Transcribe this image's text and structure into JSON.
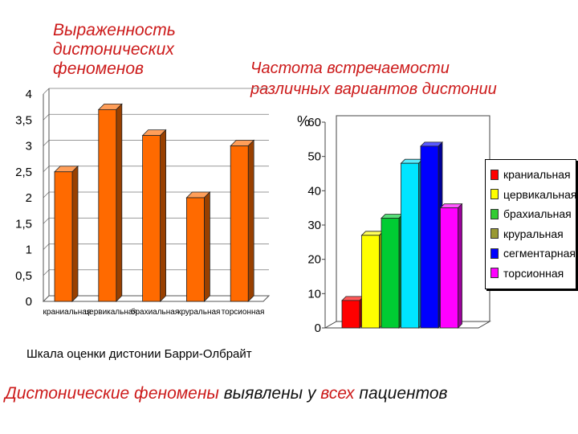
{
  "title_left": {
    "line1": "Выраженность",
    "line2": "дистонических",
    "line3": "феноменов"
  },
  "title_right": {
    "line1": "Частота встречаемости",
    "line2": "различных вариантов дистонии"
  },
  "caption": "Шкала оценки дистонии Барри-Олбрайт",
  "bottom_text": {
    "part1": "Дистонические феномены",
    "part2": "выявлены у",
    "part3": "всех",
    "part4": "пациентов"
  },
  "chart_data": [
    {
      "type": "bar",
      "title": "Выраженность дистонических феноменов",
      "xlabel": "Шкала оценки дистонии Барри-Олбрайт",
      "ylabel": "",
      "categories": [
        "краниальная",
        "цервикальная",
        "брахиальная",
        "круральная",
        "торсионная"
      ],
      "values": [
        2.5,
        3.7,
        3.2,
        2.0,
        3.0
      ],
      "yticks": [
        "0",
        "0,5",
        "1",
        "1,5",
        "2",
        "2,5",
        "3",
        "3,5",
        "4"
      ],
      "ylim": [
        0,
        4
      ],
      "grid": true,
      "bar_color": "#ff6a00"
    },
    {
      "type": "bar",
      "title": "Частота встречаемости различных вариантов дистонии",
      "ylabel": "%",
      "categories": [
        "краниальная",
        "цервикальная",
        "брахиальная",
        "круральная",
        "сегментарная",
        "торсионная"
      ],
      "values": [
        8,
        27,
        32,
        48,
        53,
        35
      ],
      "colors": [
        "#ff0000",
        "#ffff00",
        "#00cc33",
        "#00e5ff",
        "#0000ff",
        "#ff00ff"
      ],
      "yticks": [
        "0",
        "10",
        "20",
        "30",
        "40",
        "50",
        "60"
      ],
      "ylim": [
        0,
        60
      ],
      "grid": false,
      "legend": "right",
      "legend_colors": [
        "#ff0000",
        "#ffff00",
        "#33cc33",
        "#999933",
        "#0000ff",
        "#ff00ff"
      ]
    }
  ]
}
